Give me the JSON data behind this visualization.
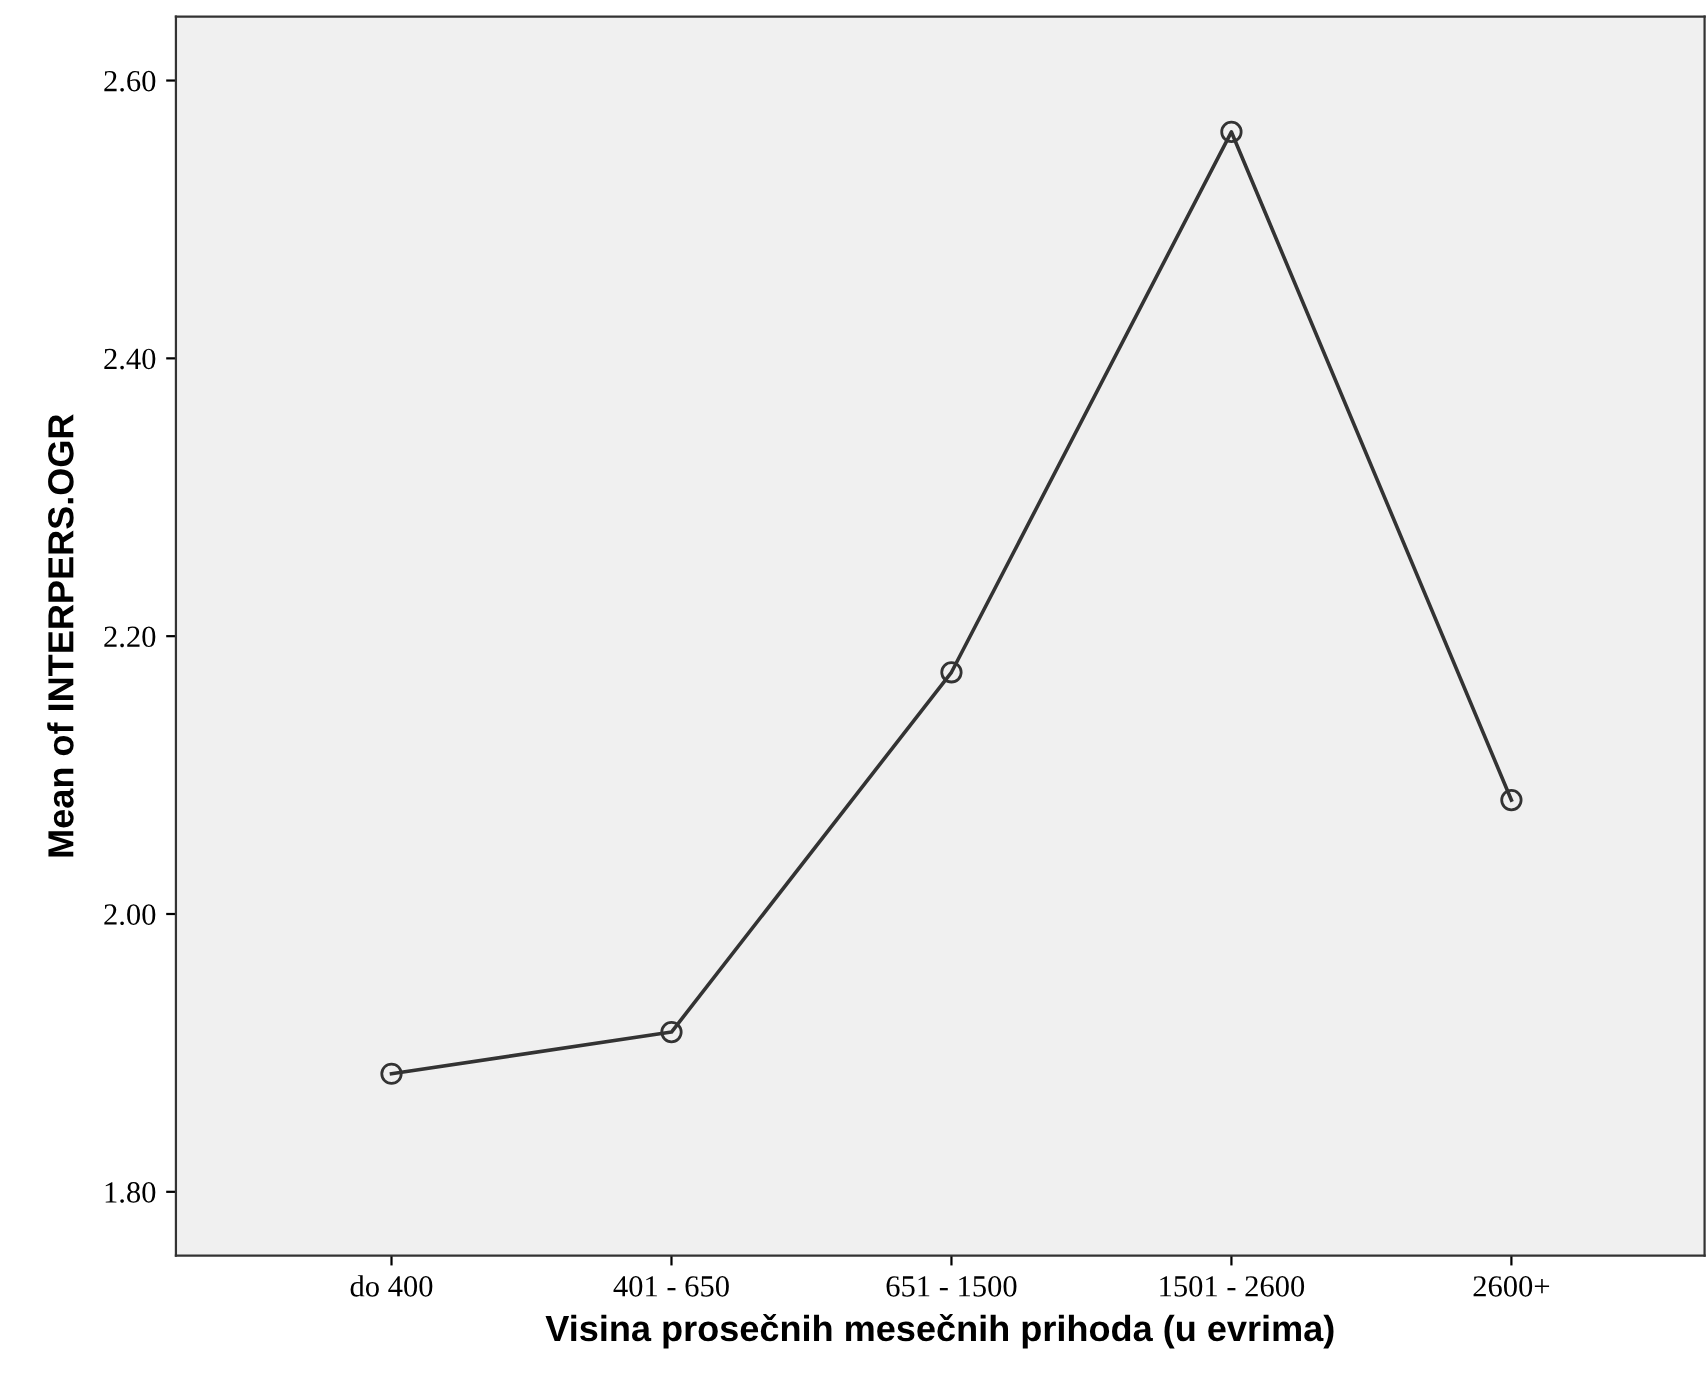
{
  "chart_data": {
    "type": "line",
    "xlabel": "Visina prosečnih mesečnih prihoda (u evrima)",
    "ylabel": "Mean of INTERPERS.OGR",
    "categories": [
      "do 400",
      "401 - 650",
      "651 - 1500",
      "1501 - 2600",
      "2600+"
    ],
    "series": [
      {
        "color": "#333333",
        "values": [
          1.885,
          1.915,
          2.174,
          2.563,
          2.082
        ]
      }
    ],
    "ylim": [
      1.754,
      2.646
    ],
    "yticks": [
      {
        "value": 1.8,
        "label": "1.80"
      },
      {
        "value": 2.0,
        "label": "2.00"
      },
      {
        "value": 2.2,
        "label": "2.20"
      },
      {
        "value": 2.4,
        "label": "2.40"
      },
      {
        "value": 2.6,
        "label": "2.60"
      }
    ],
    "marker": "circle",
    "line_style": "solid",
    "grid": false
  }
}
